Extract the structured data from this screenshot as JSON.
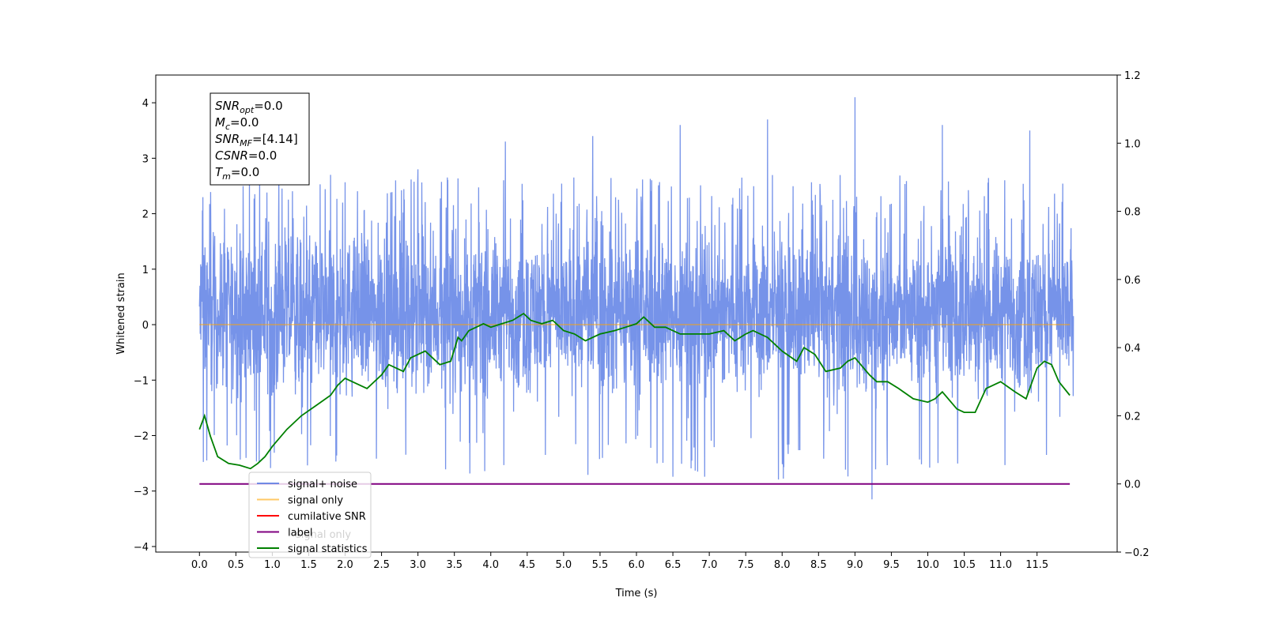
{
  "chart_data": {
    "type": "line",
    "xlabel": "Time (s)",
    "ylabel": "Whitened strain",
    "xlim": [
      -0.6,
      12.6
    ],
    "ylim_left": [
      -4.1,
      4.5
    ],
    "ylim_right": [
      -0.2,
      1.2
    ],
    "x_ticks": [
      "0.0",
      "0.5",
      "1.0",
      "1.5",
      "2.0",
      "2.5",
      "3.0",
      "3.5",
      "4.0",
      "4.5",
      "5.0",
      "5.5",
      "6.0",
      "6.5",
      "7.0",
      "7.5",
      "8.0",
      "8.5",
      "9.0",
      "9.5",
      "10.0",
      "10.5",
      "11.0",
      "11.5"
    ],
    "y_ticks_left": [
      "−4",
      "−3",
      "−2",
      "−1",
      "0",
      "1",
      "2",
      "3",
      "4"
    ],
    "y_ticks_right": [
      "−0.2",
      "0.0",
      "0.2",
      "0.4",
      "0.6",
      "0.8",
      "1.0",
      "1.2"
    ],
    "annotation": {
      "lines": [
        {
          "sym": "SNR",
          "sub": "opt",
          "val": "=0.0"
        },
        {
          "sym": "M",
          "sub": "c",
          "val": "=0.0"
        },
        {
          "sym": "SNR",
          "sub": "MF",
          "val": "=[4.14]"
        },
        {
          "sym": "CSNR",
          "sub": "",
          "val": "=0.0"
        },
        {
          "sym": "T",
          "sub": "m",
          "val": "=0.0"
        }
      ]
    },
    "legend": {
      "placement": "lower-left",
      "entries": [
        {
          "label": "signal+ noise",
          "color": "#4169e1"
        },
        {
          "label": "signal only",
          "color": "#ffa500"
        },
        {
          "label": "cumilative SNR",
          "color": "#ff0000"
        },
        {
          "label": "label",
          "color": "#800080"
        },
        {
          "label": "signal statistics",
          "color": "#008000"
        }
      ],
      "hidden_text": "signal only"
    },
    "series": [
      {
        "name": "signal+ noise",
        "axis": "left",
        "color": "#4169e1",
        "x_range": [
          0.0,
          12.0
        ],
        "description_values": {
          "baseline": 0.2,
          "spike_peaks": [
            2.5,
            2.7,
            2.8,
            3.3,
            3.4,
            3.6,
            3.7,
            4.1,
            3.6,
            3.5
          ],
          "min": -3.15
        }
      },
      {
        "name": "signal only",
        "axis": "left",
        "color": "#ffa500",
        "x": [
          0.0,
          11.95
        ],
        "y": [
          0.0,
          0.0
        ]
      },
      {
        "name": "label",
        "axis": "right",
        "color": "#800080",
        "x": [
          0.0,
          11.95
        ],
        "y": [
          0.0,
          0.0
        ]
      },
      {
        "name": "signal statistics",
        "axis": "right",
        "color": "#008000",
        "x": [
          0.0,
          0.07,
          0.15,
          0.25,
          0.4,
          0.55,
          0.7,
          0.8,
          0.9,
          1.0,
          1.2,
          1.4,
          1.6,
          1.8,
          1.9,
          2.0,
          2.1,
          2.3,
          2.5,
          2.6,
          2.8,
          2.9,
          3.0,
          3.1,
          3.3,
          3.45,
          3.55,
          3.6,
          3.7,
          3.8,
          3.9,
          4.0,
          4.15,
          4.3,
          4.45,
          4.55,
          4.7,
          4.85,
          5.0,
          5.15,
          5.3,
          5.5,
          5.7,
          5.85,
          6.0,
          6.1,
          6.25,
          6.4,
          6.6,
          6.8,
          7.0,
          7.2,
          7.35,
          7.5,
          7.6,
          7.8,
          8.0,
          8.2,
          8.3,
          8.45,
          8.6,
          8.8,
          8.9,
          9.0,
          9.2,
          9.3,
          9.45,
          9.6,
          9.8,
          10.0,
          10.1,
          10.2,
          10.4,
          10.5,
          10.65,
          10.8,
          11.0,
          11.2,
          11.35,
          11.5,
          11.6,
          11.7,
          11.8,
          11.95
        ],
        "y": [
          0.16,
          0.2,
          0.14,
          0.08,
          0.06,
          0.055,
          0.045,
          0.06,
          0.08,
          0.11,
          0.16,
          0.2,
          0.23,
          0.26,
          0.29,
          0.31,
          0.3,
          0.28,
          0.32,
          0.35,
          0.33,
          0.37,
          0.38,
          0.39,
          0.35,
          0.36,
          0.43,
          0.42,
          0.45,
          0.46,
          0.47,
          0.46,
          0.47,
          0.48,
          0.5,
          0.48,
          0.47,
          0.48,
          0.45,
          0.44,
          0.42,
          0.44,
          0.45,
          0.46,
          0.47,
          0.49,
          0.46,
          0.46,
          0.44,
          0.44,
          0.44,
          0.45,
          0.42,
          0.44,
          0.45,
          0.43,
          0.39,
          0.36,
          0.4,
          0.38,
          0.33,
          0.34,
          0.36,
          0.37,
          0.32,
          0.3,
          0.3,
          0.28,
          0.25,
          0.24,
          0.25,
          0.27,
          0.22,
          0.21,
          0.21,
          0.28,
          0.3,
          0.27,
          0.25,
          0.34,
          0.36,
          0.35,
          0.3,
          0.26
        ]
      }
    ]
  }
}
